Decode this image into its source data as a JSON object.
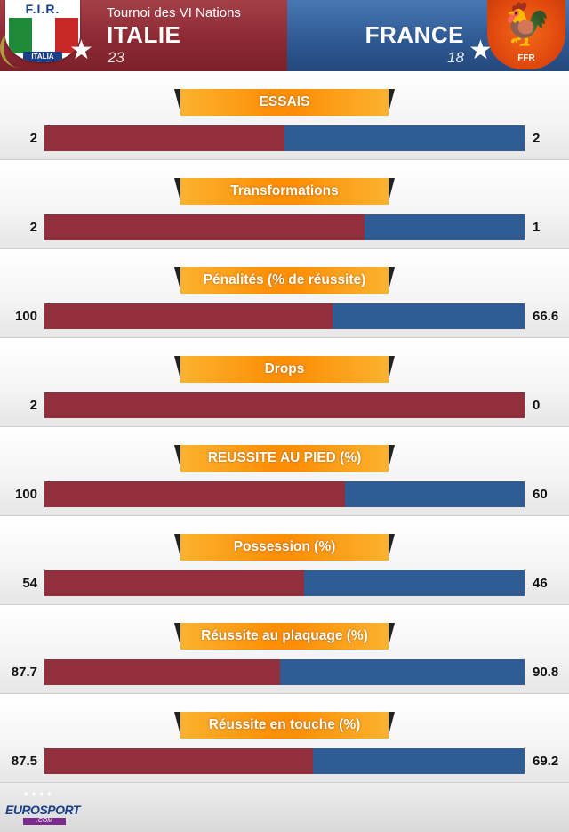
{
  "header": {
    "tournament": "Tournoi des VI Nations",
    "home": {
      "name": "ITALIE",
      "score": "23",
      "badge_letters": "F.I.R.",
      "badge_banner": "ITALIA",
      "color": "#912f3d"
    },
    "away": {
      "name": "FRANCE",
      "score": "18",
      "badge_letters": "FFR",
      "color": "#2f5c93"
    }
  },
  "chart_data": {
    "type": "bar",
    "orientation": "horizontal-stacked-comparison",
    "series": [
      {
        "name": "ITALIE",
        "color": "#912f3d"
      },
      {
        "name": "FRANCE",
        "color": "#2f5c93"
      }
    ],
    "categories": [
      "ESSAIS",
      "Transformations",
      "Pénalités (% de réussite)",
      "Drops",
      "REUSSITE AU PIED (%)",
      "Possession (%)",
      "Réussite au plaquage (%)",
      "Réussite en touche (%)"
    ],
    "stats": [
      {
        "label": "ESSAIS",
        "home": "2",
        "away": "2",
        "home_value": 2,
        "away_value": 2
      },
      {
        "label": "Transformations",
        "home": "2",
        "away": "1",
        "home_value": 2,
        "away_value": 1
      },
      {
        "label": "Pénalités (% de réussite)",
        "home": "100",
        "away": "66.6",
        "home_value": 100,
        "away_value": 66.6
      },
      {
        "label": "Drops",
        "home": "2",
        "away": "0",
        "home_value": 2,
        "away_value": 0
      },
      {
        "label": "REUSSITE AU PIED (%)",
        "home": "100",
        "away": "60",
        "home_value": 100,
        "away_value": 60
      },
      {
        "label": "Possession (%)",
        "home": "54",
        "away": "46",
        "home_value": 54,
        "away_value": 46
      },
      {
        "label": "Réussite au plaquage (%)",
        "home": "87.7",
        "away": "90.8",
        "home_value": 87.7,
        "away_value": 90.8
      },
      {
        "label": "Réussite en touche (%)",
        "home": "87.5",
        "away": "69.2",
        "home_value": 87.5,
        "away_value": 69.2
      }
    ],
    "legend": "none",
    "grid": false
  },
  "footer": {
    "logo_euro": "EURO",
    "logo_sport": "SPORT",
    "logo_domain": ".COM"
  }
}
